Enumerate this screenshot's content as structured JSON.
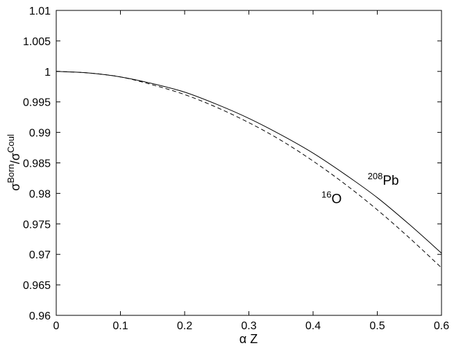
{
  "chart_data": {
    "type": "line",
    "title": "",
    "xlabel": "α Z",
    "ylabel": {
      "base1": "σ",
      "sup1": "Born",
      "slash": "/",
      "base2": "σ",
      "sup2": "Coul"
    },
    "xlim": [
      0,
      0.6
    ],
    "ylim": [
      0.96,
      1.01
    ],
    "x_ticks": [
      0,
      0.1,
      0.2,
      0.3,
      0.4,
      0.5,
      0.6
    ],
    "x_tick_labels": [
      "0",
      "0.1",
      "0.2",
      "0.3",
      "0.4",
      "0.5",
      "0.6"
    ],
    "y_ticks": [
      0.96,
      0.965,
      0.97,
      0.975,
      0.98,
      0.985,
      0.99,
      0.995,
      1.0,
      1.005,
      1.01
    ],
    "y_tick_labels": [
      "0.96",
      "0.965",
      "0.97",
      "0.975",
      "0.98",
      "0.985",
      "0.99",
      "0.995",
      "1",
      "1.005",
      "1.01"
    ],
    "grid": false,
    "legend": "none",
    "series": [
      {
        "key": "pb",
        "style": "solid",
        "color": "#000000",
        "x": [
          0,
          0.05,
          0.1,
          0.15,
          0.2,
          0.25,
          0.3,
          0.35,
          0.4,
          0.45,
          0.5,
          0.55,
          0.6
        ],
        "y": [
          1.0,
          0.99975,
          0.9991,
          0.998,
          0.9966,
          0.9946,
          0.9923,
          0.9896,
          0.9866,
          0.9831,
          0.9793,
          0.9749,
          0.9702
        ]
      },
      {
        "key": "o",
        "style": "dashed",
        "color": "#000000",
        "x": [
          0,
          0.05,
          0.1,
          0.15,
          0.2,
          0.25,
          0.3,
          0.35,
          0.4,
          0.45,
          0.5,
          0.55,
          0.6
        ],
        "y": [
          1.0,
          0.99975,
          0.9991,
          0.9978,
          0.9962,
          0.9941,
          0.9916,
          0.9887,
          0.9853,
          0.9815,
          0.9773,
          0.9727,
          0.9678
        ]
      }
    ],
    "annotations": [
      {
        "key": "pb",
        "sup": "208",
        "text": "Pb",
        "x": 0.485,
        "y": 0.9814
      },
      {
        "key": "o",
        "sup": "16",
        "text": "O",
        "x": 0.413,
        "y": 0.9784
      }
    ]
  }
}
